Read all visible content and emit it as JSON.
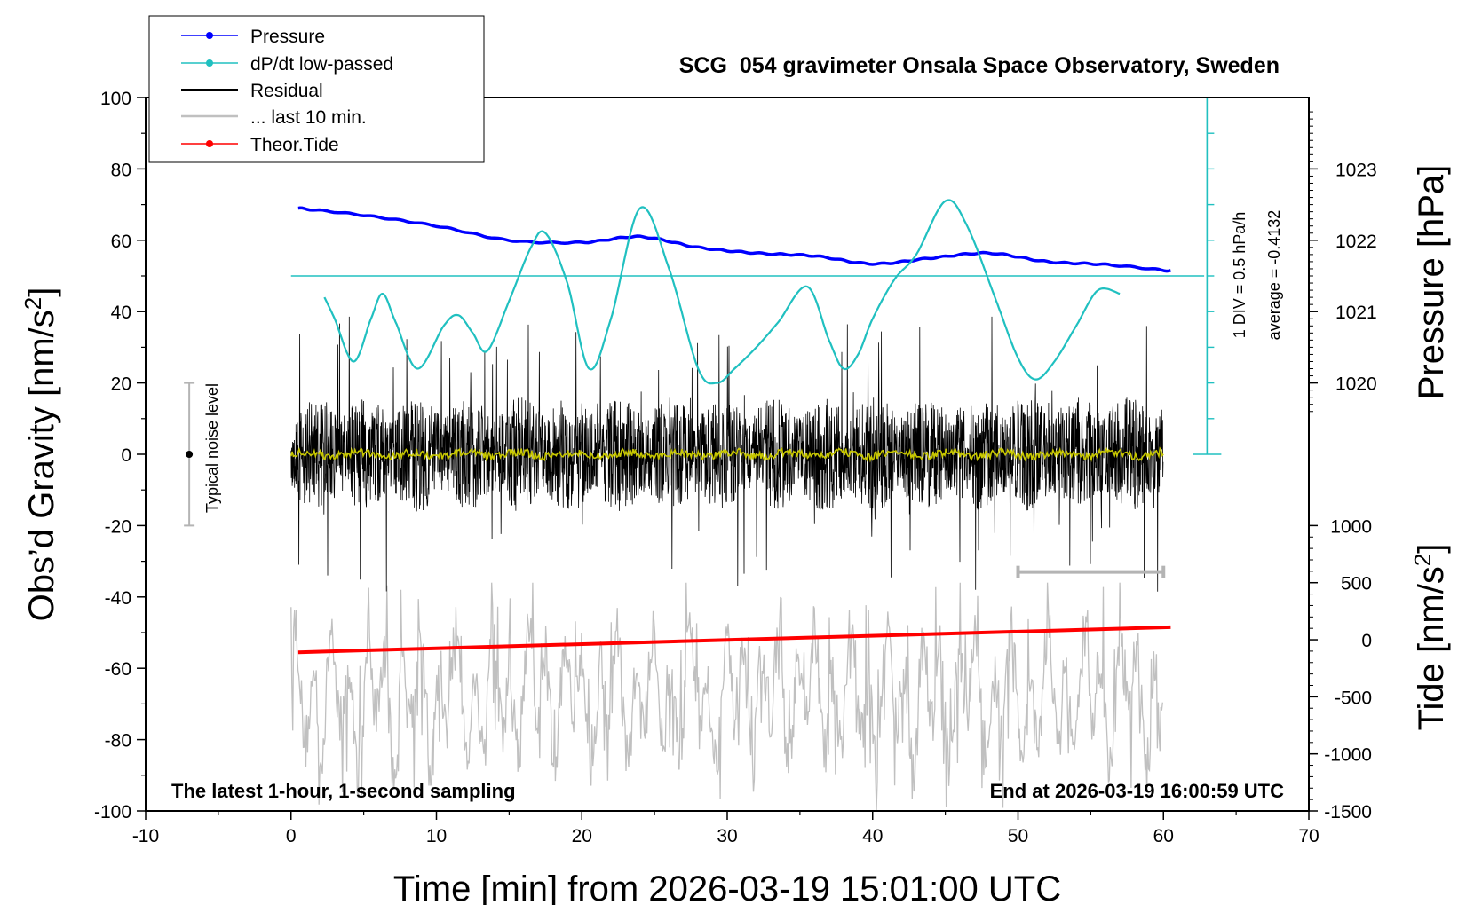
{
  "chart_data": {
    "type": "line",
    "title": "SCG_054 gravimeter Onsala Space Observatory, Sweden",
    "xlabel": "Time [min] from 2026-03-19 15:01:00 UTC",
    "xlim": [
      -10,
      70
    ],
    "xticks": [
      "-10",
      "0",
      "10",
      "20",
      "30",
      "40",
      "50",
      "60",
      "70"
    ],
    "left_axis": {
      "label_main": "Obs’d Gravity [nm/s",
      "label_sup": "2",
      "label_end": "]",
      "ylim": [
        -100,
        100
      ],
      "ticks": [
        "100",
        "80",
        "60",
        "40",
        "20",
        "0",
        "-20",
        "-40",
        "-60",
        "-80",
        "-100"
      ]
    },
    "pressure_axis": {
      "label": "Pressure [hPa]",
      "ticks": [
        "1023",
        "1022",
        "1021",
        "1020"
      ],
      "tick_values": [
        1023,
        1022,
        1021,
        1020
      ],
      "mapping": "1 hPa = 20 nm/s2 on left scale, 1021 hPa at 40"
    },
    "tide_axis": {
      "label_main": "Tide [nm/s",
      "label_sup": "2",
      "label_end": "]",
      "ticks": [
        "1000",
        "500",
        "0",
        "-500",
        "-1000",
        "-1500"
      ],
      "tick_values": [
        1000,
        500,
        0,
        -500,
        -1000,
        -1500
      ],
      "mapping": "tide axis from -1500 at -100 to 1000 at -20"
    },
    "legend": {
      "position": "top-left",
      "entries": [
        {
          "label": "Pressure",
          "color": "#0000ff",
          "marker": true
        },
        {
          "label": "dP/dt low-passed",
          "color": "#20c0c0",
          "marker": true
        },
        {
          "label": "Residual",
          "color": "#000000",
          "marker": false
        },
        {
          "label": "... last 10 min.",
          "color": "#c0c0c0",
          "marker": false
        },
        {
          "label": "Theor.Tide",
          "color": "#ff0000",
          "marker": true
        }
      ]
    },
    "series": [
      {
        "name": "Pressure",
        "color": "#0000ff",
        "axis": "pressure",
        "x": [
          0.5,
          5,
          10,
          15,
          20,
          24,
          28,
          32,
          36,
          40,
          44,
          48,
          52,
          56,
          60.5
        ],
        "y": [
          1022.45,
          1022.35,
          1022.2,
          1022.0,
          1021.97,
          1022.05,
          1021.9,
          1021.82,
          1021.78,
          1021.67,
          1021.75,
          1021.82,
          1021.7,
          1021.66,
          1021.57
        ]
      },
      {
        "name": "dP/dt low-passed",
        "color": "#20c0c0",
        "axis": "left",
        "x": [
          2.3,
          3,
          4.3,
          5.5,
          6.3,
          7.2,
          8.7,
          10.5,
          11.5,
          12.5,
          13.5,
          15,
          16.5,
          17.5,
          19,
          20.5,
          22,
          24,
          26,
          28,
          29.3,
          30.5,
          32,
          33.5,
          35.5,
          37,
          38,
          39,
          40,
          41.5,
          43,
          45,
          46.5,
          48.5,
          50,
          51.2,
          52.5,
          54,
          55.5,
          57
        ],
        "y": [
          44,
          38,
          26,
          38,
          45,
          37,
          24,
          36,
          39,
          34,
          29,
          43,
          58,
          62,
          48,
          24,
          38,
          69,
          52,
          24,
          20,
          24,
          30,
          37,
          47,
          32,
          24,
          28,
          38,
          49,
          56,
          71,
          64,
          43,
          27,
          21,
          26,
          36,
          46,
          45
        ]
      },
      {
        "name": "Residual",
        "color": "#000000",
        "axis": "left",
        "x_range": [
          0,
          60
        ],
        "amplitude_range": [
          -40,
          45
        ],
        "typical_rms": 12
      },
      {
        "name": "Residual low-passed",
        "color": "#c8c800",
        "axis": "left",
        "x_range": [
          0,
          60
        ],
        "level": 0
      },
      {
        "name": "... last 10 min.",
        "color": "#c0c0c0",
        "axis": "tide",
        "x_range": [
          0,
          60
        ],
        "amplitude_range": [
          -1500,
          500
        ]
      },
      {
        "name": "Theor.Tide",
        "color": "#ff0000",
        "axis": "tide",
        "x": [
          0.5,
          60.5
        ],
        "y": [
          -110,
          110
        ]
      }
    ],
    "dpdt_average_level": 50,
    "dpdt_scale_bar": {
      "label_div": "1 DIV = 0.5 hPa/h",
      "label_avg": "average = -0.4132",
      "x": 63,
      "y_range": [
        0,
        100
      ],
      "tick_step": 10
    },
    "noise_bar": {
      "label": "Typical noise level",
      "x": -7,
      "center": 0,
      "half_range": 20
    },
    "ten_min_bar": {
      "x_range": [
        50,
        60
      ],
      "y": -33
    },
    "annotations": {
      "bottom_left": "The latest 1-hour, 1-second sampling",
      "bottom_right": "End at 2026-03-19 16:00:59 UTC"
    },
    "colors": {
      "pressure": "#0000ff",
      "dpdt": "#20c0c0",
      "residual": "#000000",
      "residual_lp": "#c8c800",
      "last10": "#c0c0c0",
      "tide": "#ff0000"
    }
  }
}
